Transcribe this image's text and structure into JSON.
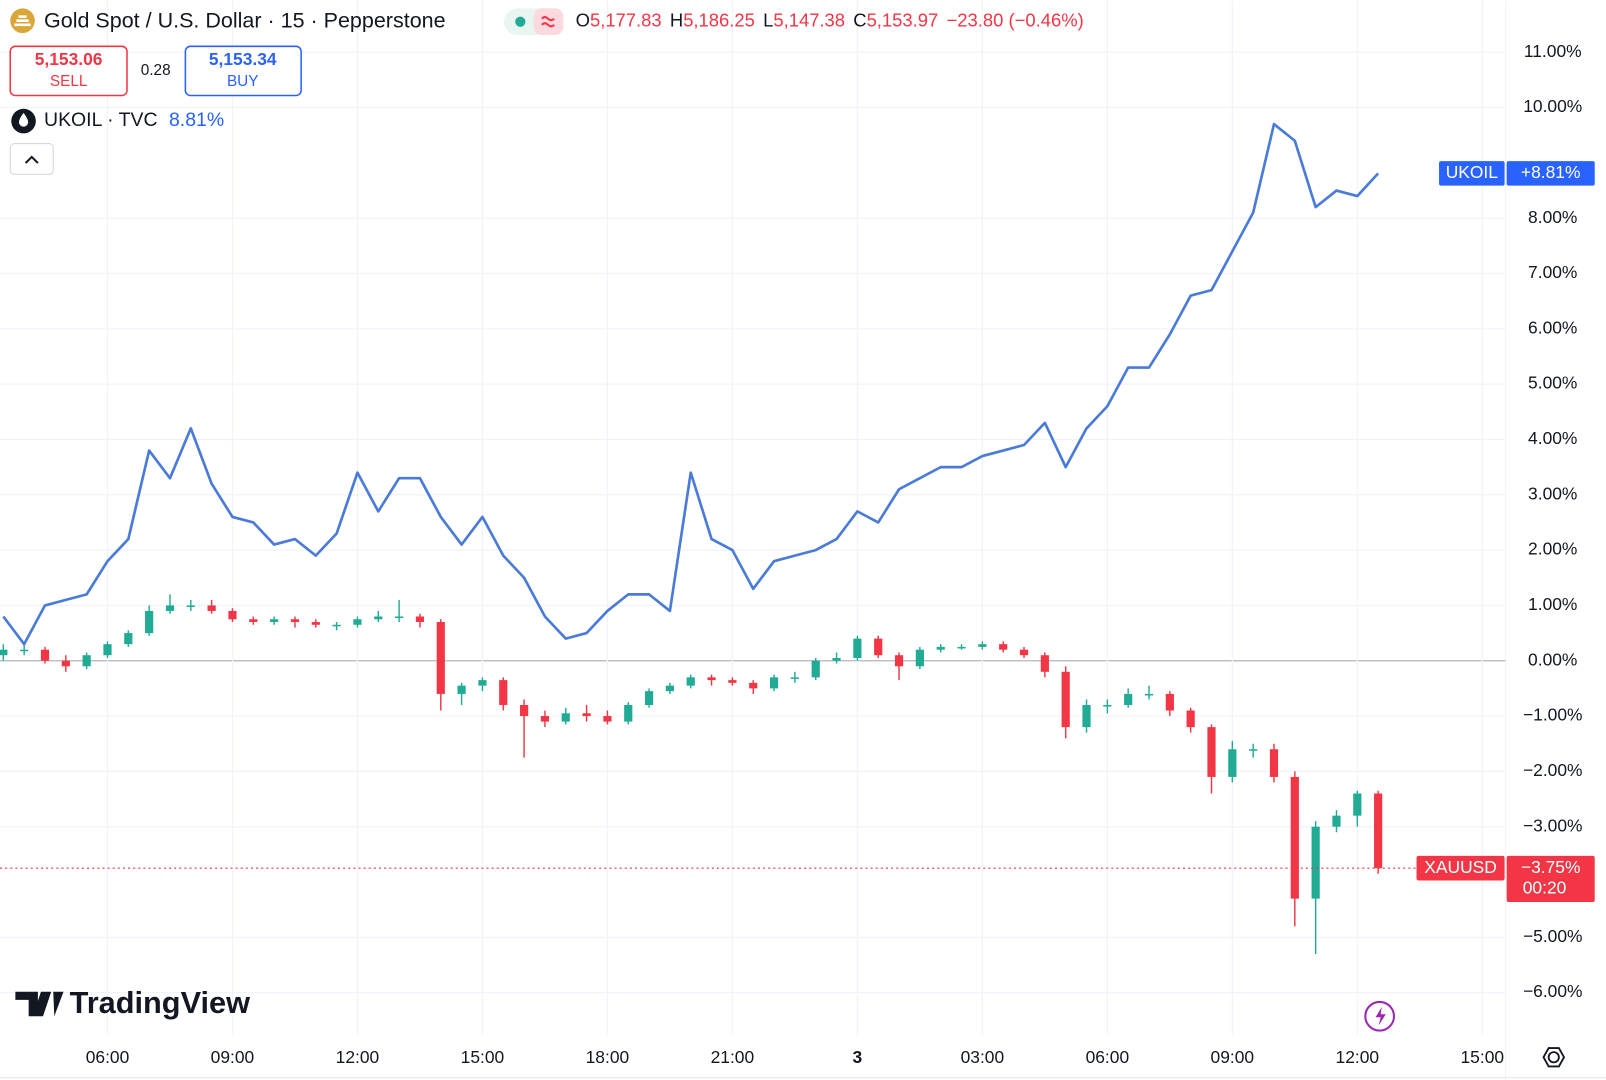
{
  "header": {
    "title": "Gold Spot / U.S. Dollar · 15 · Pepperstone",
    "ohlc": [
      {
        "key": "O",
        "value": "5,177.83"
      },
      {
        "key": "H",
        "value": "5,186.25"
      },
      {
        "key": "L",
        "value": "5,147.38"
      },
      {
        "key": "C",
        "value": "5,153.97"
      }
    ],
    "change": "−23.80 (−0.46%)",
    "sell": {
      "price": "5,153.06",
      "label": "SELL"
    },
    "spread": "0.28",
    "buy": {
      "price": "5,153.34",
      "label": "BUY"
    }
  },
  "branding": "TradingView",
  "chart_data": {
    "type": "candlestick",
    "grid": true,
    "xlim": [
      3.42,
      39.56
    ],
    "ylim": [
      -6.76,
      11.94
    ],
    "xticks": [
      {
        "value": 6,
        "label": "06:00"
      },
      {
        "value": 9,
        "label": "09:00"
      },
      {
        "value": 12,
        "label": "12:00"
      },
      {
        "value": 15,
        "label": "15:00"
      },
      {
        "value": 18,
        "label": "18:00"
      },
      {
        "value": 21,
        "label": "21:00"
      },
      {
        "value": 24,
        "label": "3"
      },
      {
        "value": 27,
        "label": "03:00"
      },
      {
        "value": 30,
        "label": "06:00"
      },
      {
        "value": 33,
        "label": "09:00"
      },
      {
        "value": 36,
        "label": "12:00"
      },
      {
        "value": 39,
        "label": "15:00"
      }
    ],
    "yticks": [
      {
        "value": -6,
        "label": "−6.00%"
      },
      {
        "value": -5,
        "label": "−5.00%"
      },
      {
        "value": -3,
        "label": "−3.00%"
      },
      {
        "value": -2,
        "label": "−2.00%"
      },
      {
        "value": -1,
        "label": "−1.00%"
      },
      {
        "value": 0,
        "label": "0.00%"
      },
      {
        "value": 1,
        "label": "1.00%"
      },
      {
        "value": 2,
        "label": "2.00%"
      },
      {
        "value": 3,
        "label": "3.00%"
      },
      {
        "value": 4,
        "label": "4.00%"
      },
      {
        "value": 5,
        "label": "5.00%"
      },
      {
        "value": 6,
        "label": "6.00%"
      },
      {
        "value": 7,
        "label": "7.00%"
      },
      {
        "value": 8,
        "label": "8.00%"
      },
      {
        "value": 10,
        "label": "10.00%"
      },
      {
        "value": 11,
        "label": "11.00%"
      }
    ],
    "x": [
      3.5,
      4,
      4.5,
      5,
      5.5,
      6,
      6.5,
      7,
      7.5,
      8,
      8.5,
      9,
      9.5,
      10,
      10.5,
      11,
      11.5,
      12,
      12.5,
      13,
      13.5,
      14,
      14.5,
      15,
      15.5,
      16,
      16.5,
      17,
      17.5,
      18,
      18.5,
      19,
      19.5,
      20,
      20.5,
      21,
      21.5,
      22,
      22.5,
      23,
      23.5,
      24,
      24.5,
      25,
      25.5,
      26,
      26.5,
      27,
      27.5,
      28,
      28.5,
      29,
      29.5,
      30,
      30.5,
      31,
      31.5,
      32,
      32.5,
      33,
      33.5,
      34,
      34.5,
      35,
      35.5,
      36,
      36.5
    ],
    "series": [
      {
        "name": "XAUUSD",
        "up_color": "#22ab94",
        "down_color": "#f23645",
        "price_label": "−3.75%",
        "countdown": "00:20",
        "open": [
          0.1,
          0.2,
          0.2,
          0.0,
          -0.1,
          0.1,
          0.3,
          0.5,
          0.9,
          1.0,
          1.0,
          0.9,
          0.75,
          0.7,
          0.75,
          0.7,
          0.65,
          0.65,
          0.75,
          0.8,
          0.8,
          0.7,
          -0.6,
          -0.45,
          -0.35,
          -0.8,
          -1.0,
          -1.1,
          -0.95,
          -1.0,
          -1.1,
          -0.8,
          -0.55,
          -0.45,
          -0.3,
          -0.35,
          -0.4,
          -0.5,
          -0.3,
          -0.3,
          0.0,
          0.05,
          0.4,
          0.1,
          -0.1,
          0.2,
          0.25,
          0.25,
          0.3,
          0.2,
          0.1,
          -0.2,
          -1.2,
          -0.8,
          -0.8,
          -0.6,
          -0.6,
          -0.9,
          -1.2,
          -2.1,
          -1.6,
          -1.6,
          -2.1,
          -4.3,
          -3.0,
          -2.8,
          -2.4
        ],
        "high": [
          0.3,
          0.3,
          0.25,
          0.1,
          0.15,
          0.35,
          0.55,
          1.0,
          1.2,
          1.1,
          1.1,
          0.95,
          0.8,
          0.8,
          0.8,
          0.75,
          0.7,
          0.8,
          0.9,
          1.1,
          0.85,
          0.75,
          -0.4,
          -0.3,
          -0.3,
          -0.7,
          -0.9,
          -0.85,
          -0.8,
          -0.9,
          -0.75,
          -0.5,
          -0.4,
          -0.25,
          -0.25,
          -0.3,
          -0.35,
          -0.25,
          -0.2,
          0.05,
          0.15,
          0.45,
          0.45,
          0.15,
          0.25,
          0.3,
          0.3,
          0.35,
          0.35,
          0.25,
          0.15,
          -0.1,
          -0.7,
          -0.7,
          -0.5,
          -0.45,
          -0.55,
          -0.85,
          -1.15,
          -1.45,
          -1.5,
          -1.5,
          -2.0,
          -2.9,
          -2.7,
          -2.35,
          -2.35
        ],
        "low": [
          0.0,
          0.1,
          -0.05,
          -0.2,
          -0.15,
          0.05,
          0.25,
          0.45,
          0.85,
          0.9,
          0.85,
          0.7,
          0.65,
          0.65,
          0.6,
          0.6,
          0.55,
          0.6,
          0.7,
          0.7,
          0.6,
          -0.9,
          -0.8,
          -0.55,
          -0.9,
          -1.75,
          -1.2,
          -1.15,
          -1.1,
          -1.15,
          -1.15,
          -0.85,
          -0.6,
          -0.5,
          -0.45,
          -0.45,
          -0.6,
          -0.55,
          -0.4,
          -0.35,
          -0.05,
          0.0,
          0.05,
          -0.35,
          -0.15,
          0.15,
          0.2,
          0.2,
          0.15,
          0.05,
          -0.3,
          -1.4,
          -1.3,
          -0.95,
          -0.85,
          -0.7,
          -1.0,
          -1.3,
          -2.4,
          -2.2,
          -1.75,
          -2.2,
          -4.8,
          -5.3,
          -3.1,
          -3.0,
          -3.85
        ],
        "close": [
          0.2,
          0.2,
          0.0,
          -0.1,
          0.1,
          0.3,
          0.5,
          0.9,
          1.0,
          1.0,
          0.9,
          0.75,
          0.7,
          0.75,
          0.7,
          0.65,
          0.65,
          0.75,
          0.8,
          0.8,
          0.7,
          -0.6,
          -0.45,
          -0.35,
          -0.8,
          -1.0,
          -1.1,
          -0.95,
          -1.0,
          -1.1,
          -0.8,
          -0.55,
          -0.45,
          -0.3,
          -0.35,
          -0.4,
          -0.5,
          -0.3,
          -0.3,
          0.0,
          0.05,
          0.4,
          0.1,
          -0.1,
          0.2,
          0.25,
          0.25,
          0.3,
          0.2,
          0.1,
          -0.2,
          -1.2,
          -0.8,
          -0.8,
          -0.6,
          -0.6,
          -0.9,
          -1.2,
          -2.1,
          -1.6,
          -1.6,
          -2.1,
          -4.3,
          -3.0,
          -2.8,
          -2.4,
          -3.75
        ]
      },
      {
        "name": "UKOIL",
        "type": "line",
        "color": "#4a7bd8",
        "legend": "UKOIL · TVC",
        "legend_value": "8.81%",
        "price_label": "+8.81%",
        "values": [
          0.8,
          0.3,
          1.0,
          1.1,
          1.2,
          1.8,
          2.2,
          3.8,
          3.3,
          4.2,
          3.2,
          2.6,
          2.5,
          2.1,
          2.2,
          1.9,
          2.3,
          3.4,
          2.7,
          3.3,
          3.3,
          2.6,
          2.1,
          2.6,
          1.9,
          1.5,
          0.8,
          0.4,
          0.5,
          0.9,
          1.2,
          1.2,
          0.9,
          3.4,
          2.2,
          2.0,
          1.3,
          1.8,
          1.9,
          2.0,
          2.2,
          2.7,
          2.5,
          3.1,
          3.3,
          3.5,
          3.5,
          3.7,
          3.8,
          3.9,
          4.3,
          3.5,
          4.2,
          4.6,
          5.3,
          5.3,
          5.9,
          6.6,
          6.7,
          7.4,
          8.1,
          9.7,
          9.4,
          8.2,
          8.5,
          8.4,
          8.81
        ]
      }
    ]
  }
}
